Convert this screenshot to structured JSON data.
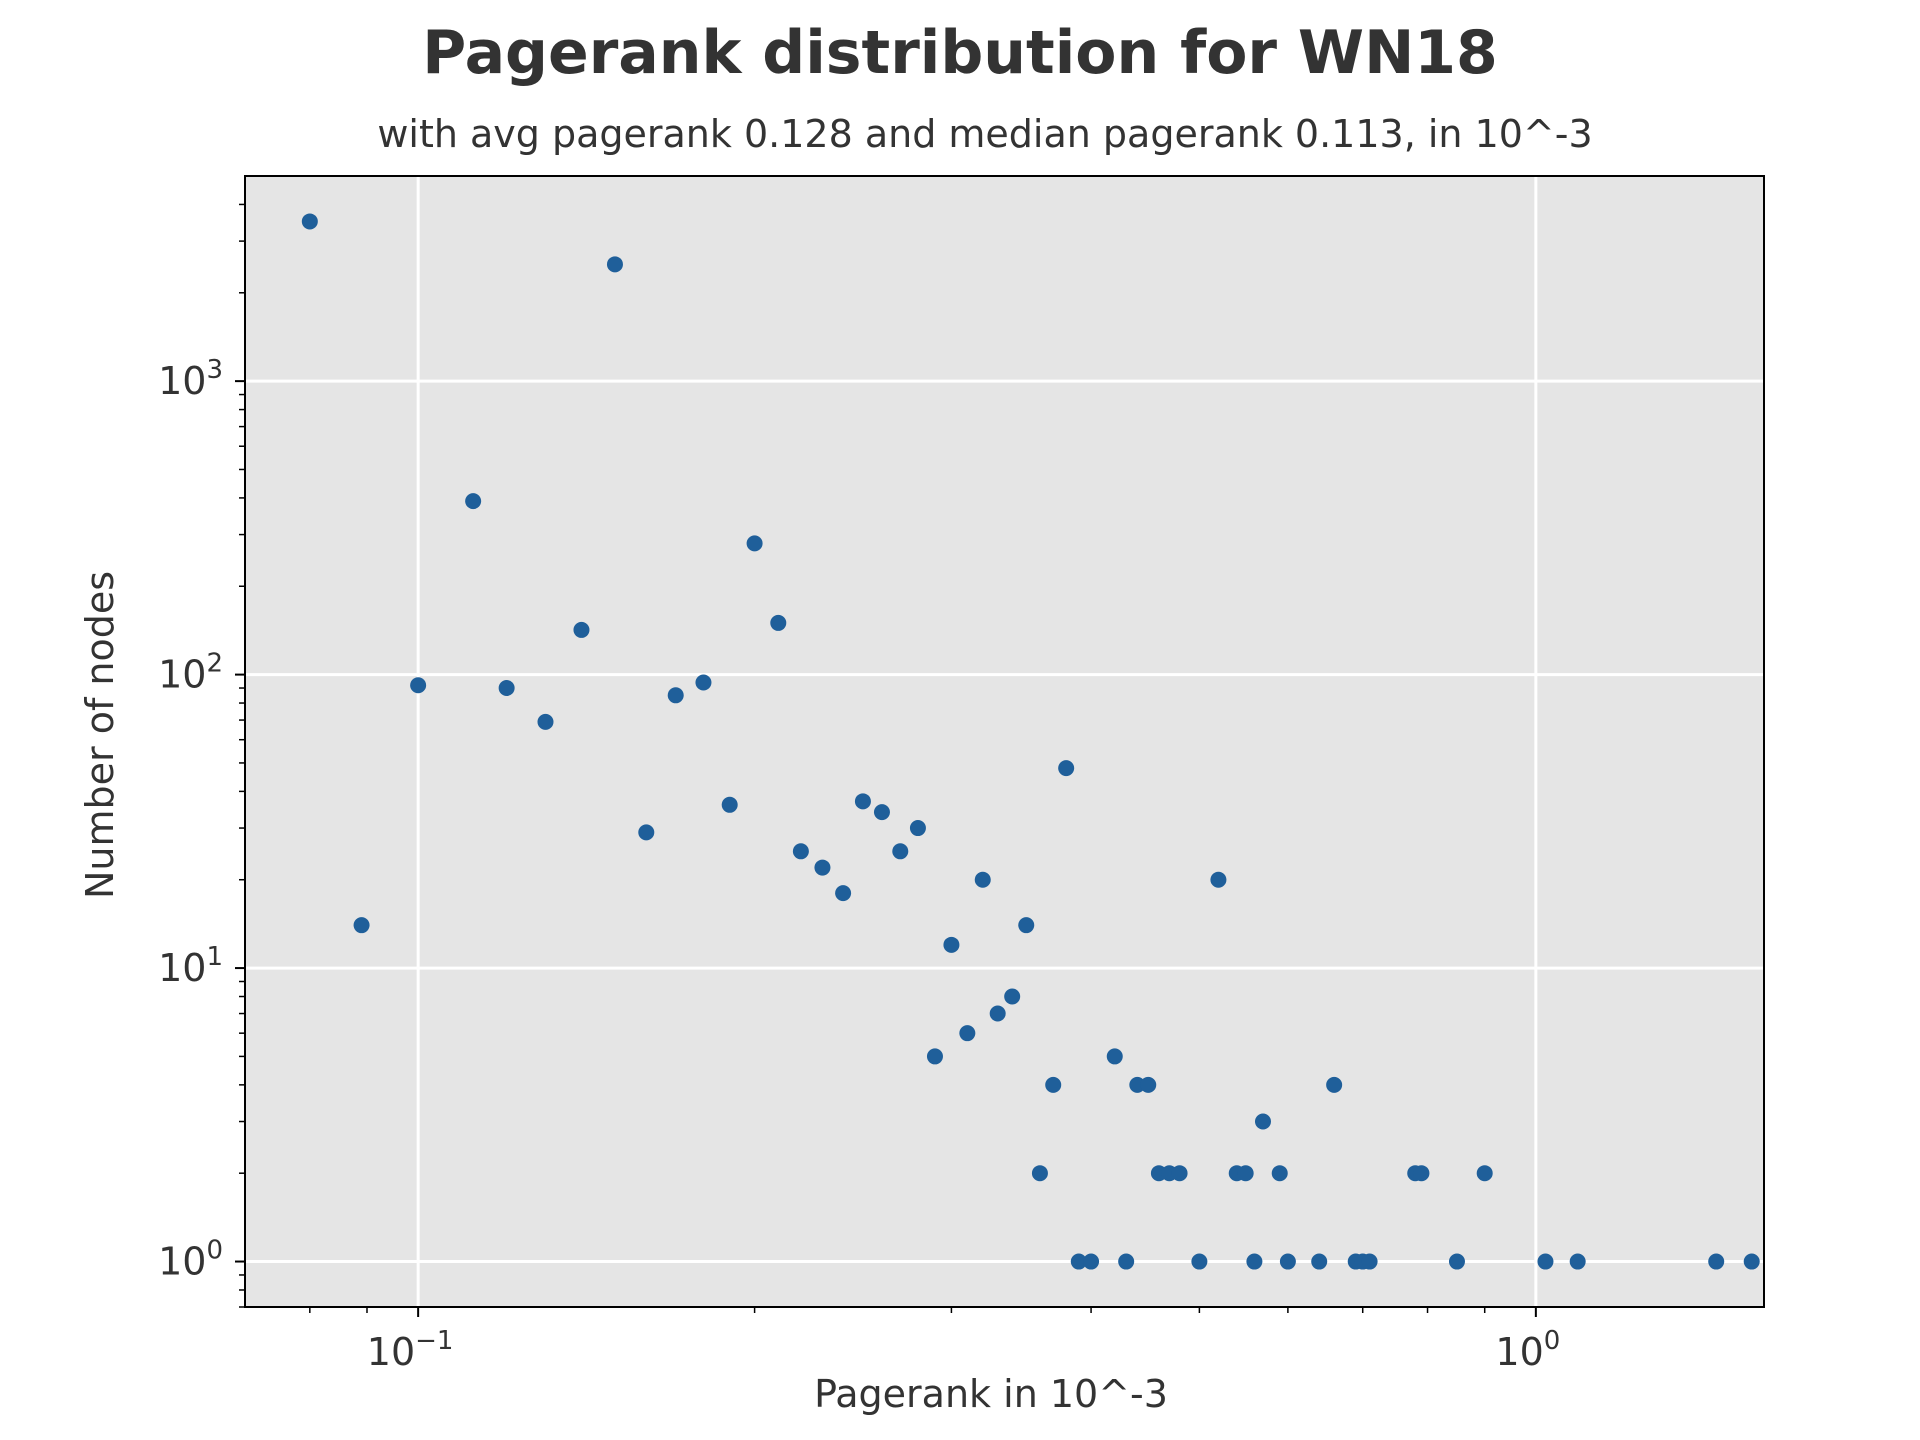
{
  "chart_data": {
    "type": "scatter",
    "title": "Pagerank distribution for WN18",
    "subtitle": "with avg pagerank 0.128 and median pagerank 0.113, in 10^-3",
    "xlabel": "Pagerank in 10^-3",
    "ylabel": "Number of nodes",
    "xscale": "log",
    "yscale": "log",
    "xlim": [
      0.07,
      1.6
    ],
    "ylim": [
      0.7,
      5000
    ],
    "grid": true,
    "series_color": "#1f5f9a",
    "background_color": "#e5e5e5",
    "x_ticks": [
      {
        "value": 0.1,
        "base": "10",
        "exp": "−1"
      },
      {
        "value": 1.0,
        "base": "10",
        "exp": "0"
      }
    ],
    "y_ticks": [
      {
        "value": 1,
        "base": "10",
        "exp": "0"
      },
      {
        "value": 10,
        "base": "10",
        "exp": "1"
      },
      {
        "value": 100,
        "base": "10",
        "exp": "2"
      },
      {
        "value": 1000,
        "base": "10",
        "exp": "3"
      }
    ],
    "points": [
      [
        0.08,
        3500
      ],
      [
        0.089,
        14
      ],
      [
        0.1,
        92
      ],
      [
        0.112,
        390
      ],
      [
        0.12,
        90
      ],
      [
        0.13,
        69
      ],
      [
        0.14,
        142
      ],
      [
        0.15,
        2500
      ],
      [
        0.16,
        29
      ],
      [
        0.17,
        85
      ],
      [
        0.18,
        94
      ],
      [
        0.19,
        36
      ],
      [
        0.2,
        280
      ],
      [
        0.21,
        150
      ],
      [
        0.22,
        25
      ],
      [
        0.23,
        22
      ],
      [
        0.24,
        18
      ],
      [
        0.25,
        37
      ],
      [
        0.26,
        34
      ],
      [
        0.27,
        25
      ],
      [
        0.28,
        30
      ],
      [
        0.29,
        5
      ],
      [
        0.3,
        12
      ],
      [
        0.31,
        6
      ],
      [
        0.32,
        20
      ],
      [
        0.33,
        7
      ],
      [
        0.34,
        8
      ],
      [
        0.35,
        14
      ],
      [
        0.36,
        2
      ],
      [
        0.37,
        4
      ],
      [
        0.38,
        48
      ],
      [
        0.39,
        1
      ],
      [
        0.4,
        1
      ],
      [
        0.42,
        5
      ],
      [
        0.43,
        1
      ],
      [
        0.44,
        4
      ],
      [
        0.45,
        4
      ],
      [
        0.46,
        2
      ],
      [
        0.47,
        2
      ],
      [
        0.48,
        2
      ],
      [
        0.5,
        1
      ],
      [
        0.52,
        20
      ],
      [
        0.54,
        2
      ],
      [
        0.55,
        2
      ],
      [
        0.56,
        1
      ],
      [
        0.57,
        3
      ],
      [
        0.59,
        2
      ],
      [
        0.6,
        1
      ],
      [
        0.64,
        1
      ],
      [
        0.66,
        4
      ],
      [
        0.69,
        1
      ],
      [
        0.7,
        1
      ],
      [
        0.71,
        1
      ],
      [
        0.78,
        2
      ],
      [
        0.79,
        2
      ],
      [
        0.85,
        1
      ],
      [
        0.9,
        2
      ],
      [
        1.02,
        1
      ],
      [
        1.09,
        1
      ],
      [
        1.45,
        1
      ],
      [
        1.56,
        1
      ]
    ]
  }
}
